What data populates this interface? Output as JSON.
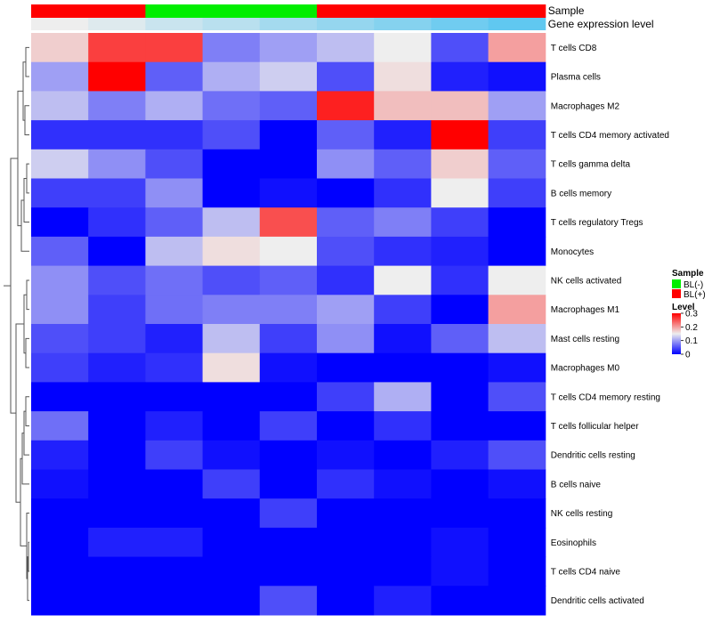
{
  "chart_data": {
    "type": "heatmap",
    "annotation_tracks": [
      {
        "name": "Sample",
        "values": [
          "BL(+)",
          "BL(+)",
          "BL(-)",
          "BL(-)",
          "BL(-)",
          "BL(+)",
          "BL(+)",
          "BL(+)",
          "BL(+)"
        ]
      },
      {
        "name": "Gene expression level",
        "values": [
          0.0,
          0.03,
          0.07,
          0.1,
          0.14,
          0.17,
          0.2,
          0.24,
          0.27
        ]
      }
    ],
    "rows": [
      "T cells CD8",
      "Plasma cells",
      "Macrophages M2",
      "T cells CD4 memory activated",
      "T cells gamma delta",
      "B cells memory",
      "T cells regulatory  Tregs",
      "Monocytes",
      "NK cells activated",
      "Macrophages M1",
      "Mast cells resting",
      "Macrophages M0",
      "T cells CD4 memory resting",
      "T cells follicular helper",
      "Dendritic cells resting",
      "B cells naive",
      "NK cells resting",
      "Eosinophils",
      "T cells CD4 naive",
      "Dendritic cells activated"
    ],
    "values": [
      [
        0.17,
        0.26,
        0.26,
        0.08,
        0.1,
        0.12,
        0.15,
        0.05,
        0.2
      ],
      [
        0.1,
        0.3,
        0.06,
        0.11,
        0.13,
        0.05,
        0.16,
        0.02,
        0.01
      ],
      [
        0.12,
        0.08,
        0.11,
        0.07,
        0.06,
        0.28,
        0.18,
        0.18,
        0.1
      ],
      [
        0.03,
        0.03,
        0.03,
        0.05,
        0.0,
        0.06,
        0.02,
        0.3,
        0.04
      ],
      [
        0.13,
        0.09,
        0.05,
        0.0,
        0.0,
        0.09,
        0.06,
        0.17,
        0.06
      ],
      [
        0.04,
        0.04,
        0.09,
        0.0,
        0.01,
        0.0,
        0.03,
        0.15,
        0.04
      ],
      [
        0.0,
        0.03,
        0.06,
        0.12,
        0.25,
        0.06,
        0.08,
        0.04,
        0.0
      ],
      [
        0.06,
        0.0,
        0.12,
        0.16,
        0.15,
        0.05,
        0.03,
        0.02,
        0.0
      ],
      [
        0.09,
        0.05,
        0.07,
        0.05,
        0.06,
        0.03,
        0.15,
        0.03,
        0.15
      ],
      [
        0.09,
        0.04,
        0.07,
        0.08,
        0.08,
        0.1,
        0.04,
        0.0,
        0.2
      ],
      [
        0.05,
        0.04,
        0.02,
        0.12,
        0.04,
        0.09,
        0.01,
        0.06,
        0.12
      ],
      [
        0.04,
        0.02,
        0.03,
        0.16,
        0.01,
        0.0,
        0.0,
        0.0,
        0.01
      ],
      [
        0.0,
        0.0,
        0.0,
        0.0,
        0.0,
        0.04,
        0.11,
        0.0,
        0.05
      ],
      [
        0.07,
        0.0,
        0.02,
        0.0,
        0.04,
        0.0,
        0.03,
        0.0,
        0.0
      ],
      [
        0.02,
        0.0,
        0.04,
        0.01,
        0.0,
        0.01,
        0.0,
        0.02,
        0.05
      ],
      [
        0.01,
        0.0,
        0.0,
        0.04,
        0.0,
        0.03,
        0.01,
        0.0,
        0.01
      ],
      [
        0.0,
        0.0,
        0.0,
        0.0,
        0.04,
        0.0,
        0.0,
        0.0,
        0.0
      ],
      [
        0.0,
        0.02,
        0.02,
        0.0,
        0.0,
        0.0,
        0.0,
        0.01,
        0.0
      ],
      [
        0.0,
        0.0,
        0.0,
        0.0,
        0.0,
        0.0,
        0.0,
        0.01,
        0.0
      ],
      [
        0.0,
        0.0,
        0.0,
        0.0,
        0.05,
        0.0,
        0.02,
        0.0,
        0.0
      ]
    ],
    "color_scale": {
      "min": 0,
      "mid": 0.15,
      "max": 0.3,
      "low_color": "#0000FF",
      "mid_color": "#EEEEEE",
      "high_color": "#FF0000"
    },
    "legend": {
      "position": "right",
      "sample_title": "Sample",
      "sample_entries": [
        {
          "label": "BL(-)",
          "color": "#00EE00"
        },
        {
          "label": "BL(+)",
          "color": "#FF0000"
        }
      ],
      "level_title": "Level",
      "level_ticks": [
        "0.3",
        "0.2",
        "0.1",
        "0"
      ],
      "level_tick_values": [
        0.3,
        0.2,
        0.1,
        0.0
      ]
    },
    "dendrogram": "rows",
    "xlabel": "",
    "ylabel": ""
  }
}
